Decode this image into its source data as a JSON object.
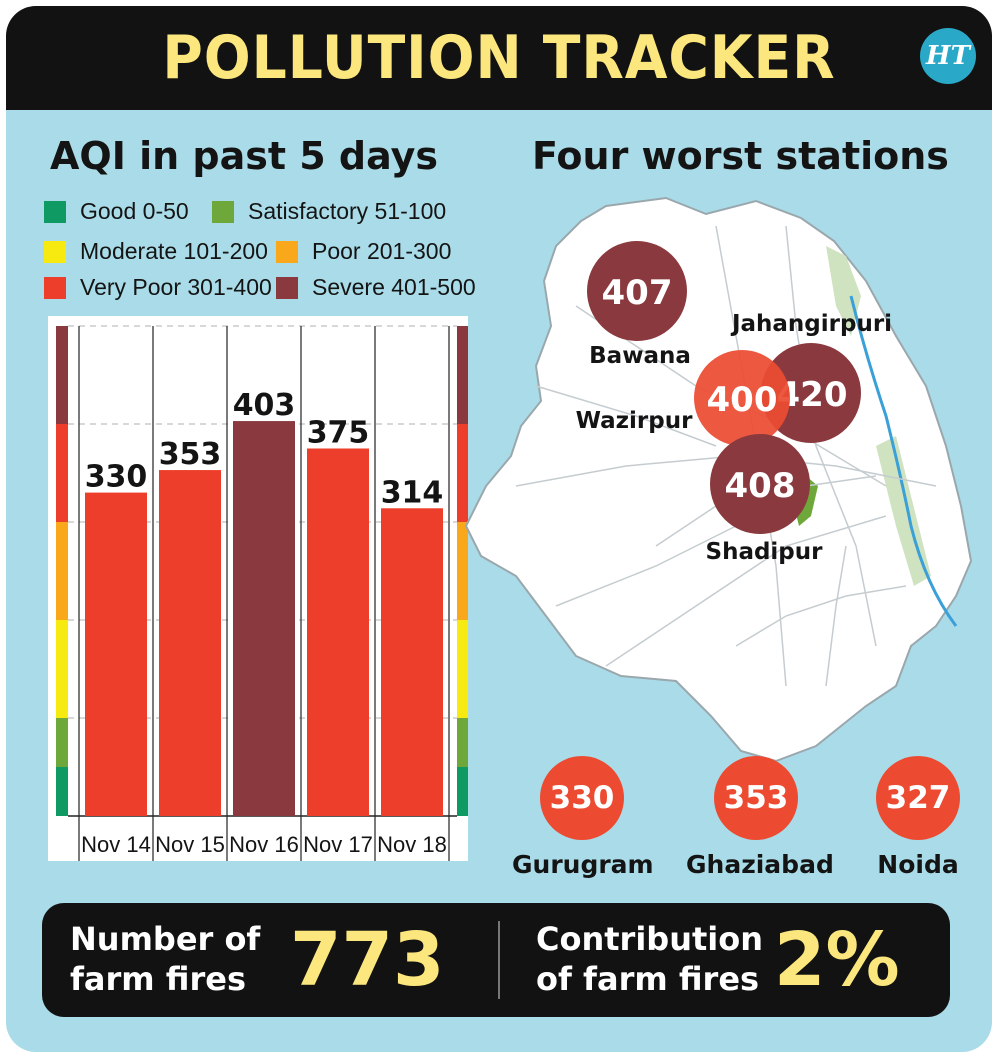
{
  "header": {
    "title": "POLLUTION TRACKER",
    "logo": "HT"
  },
  "chart_title": "AQI in past 5 days",
  "map_title": "Four worst stations",
  "legend": [
    {
      "label": "Good 0-50",
      "color": "#0f9a64"
    },
    {
      "label": "Satisfactory 51-100",
      "color": "#6fa83a"
    },
    {
      "label": "Moderate 101-200",
      "color": "#f6ea11"
    },
    {
      "label": "Poor 201-300",
      "color": "#f9a81b"
    },
    {
      "label": "Very Poor 301-400",
      "color": "#ec3e2a"
    },
    {
      "label": "Severe 401-500",
      "color": "#8a3a3e"
    }
  ],
  "chart_data": {
    "type": "bar",
    "categories": [
      "Nov 14",
      "Nov 15",
      "Nov 16",
      "Nov 17",
      "Nov 18"
    ],
    "values": [
      330,
      353,
      403,
      375,
      314
    ],
    "ylim": [
      0,
      500
    ],
    "grid": true,
    "bar_colors": [
      "#ec3e2a",
      "#ec3e2a",
      "#8a3a3e",
      "#ec3e2a",
      "#ec3e2a"
    ]
  },
  "stations": [
    {
      "name": "Bawana",
      "aqi": "407",
      "color": "#8a3a3e"
    },
    {
      "name": "Jahangirpuri",
      "aqi": "420",
      "color": "#8a3a3e"
    },
    {
      "name": "Wazirpur",
      "aqi": "400",
      "color": "#ec4b32"
    },
    {
      "name": "Shadipur",
      "aqi": "408",
      "color": "#8a3a3e"
    }
  ],
  "cities": [
    {
      "name": "Gurugram",
      "aqi": "330"
    },
    {
      "name": "Ghaziabad",
      "aqi": "353"
    },
    {
      "name": "Noida",
      "aqi": "327"
    }
  ],
  "stats": {
    "farm_fires_label_1": "Number of",
    "farm_fires_label_2": "farm fires",
    "farm_fires_value": "773",
    "contribution_label_1": "Contribution",
    "contribution_label_2": "of farm fires",
    "contribution_value": "2%"
  }
}
